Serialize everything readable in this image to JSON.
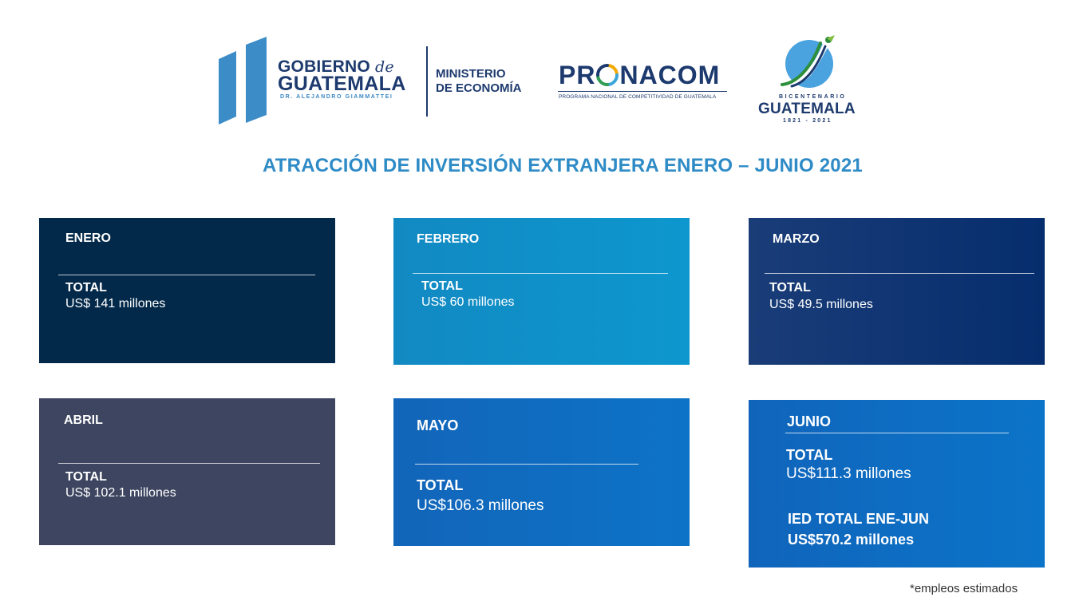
{
  "logos": {
    "gobierno_line1": "GOBIERNO",
    "gobierno_de": "de",
    "gobierno_line2": "GUATEMALA",
    "gobierno_president": "DR. ALEJANDRO GIAMMATTEI",
    "ministerio_line1": "MINISTERIO",
    "ministerio_line2": "DE ECONOMÍA",
    "pronacom_pre": "PR",
    "pronacom_post": "NACOM",
    "pronacom_subtitle": "PROGRAMA NACIONAL DE COMPETITIVIDAD DE GUATEMALA",
    "bicentenario_small": "BICENTENARIO",
    "bicentenario_big": "GUATEMALA",
    "bicentenario_years": "1821 - 2021"
  },
  "title": "ATRACCIÓN DE INVERSIÓN EXTRANJERA ENERO – JUNIO 2021",
  "cards": {
    "enero": {
      "month": "ENERO",
      "total_label": "TOTAL",
      "value": "US$ 141 millones"
    },
    "febrero": {
      "month": "FEBRERO",
      "total_label": "TOTAL",
      "value": "US$ 60 millones"
    },
    "marzo": {
      "month": "MARZO",
      "total_label": "TOTAL",
      "value": "US$ 49.5 millones"
    },
    "abril": {
      "month": "ABRIL",
      "total_label": "TOTAL",
      "value": "US$ 102.1 millones"
    },
    "mayo": {
      "month": "MAYO",
      "total_label": "TOTAL",
      "value": "US$106.3 millones"
    },
    "junio": {
      "month": "JUNIO",
      "total_label": "TOTAL",
      "value": "US$111.3 millones",
      "grand_total_label": "IED TOTAL ENE-JUN",
      "grand_total_value": "US$570.2 millones"
    }
  },
  "footnote": "*empleos estimados",
  "colors": {
    "title_blue": "#2e8bc6",
    "navy": "#1d3a6e",
    "enero_bg": "#03294a",
    "febrero_bg": "#0d97ce",
    "marzo_bg": "#062d6d",
    "abril_bg": "#3d4560",
    "mayo_bg": "#0d73c7",
    "junio_bg": "#0b74c8"
  }
}
